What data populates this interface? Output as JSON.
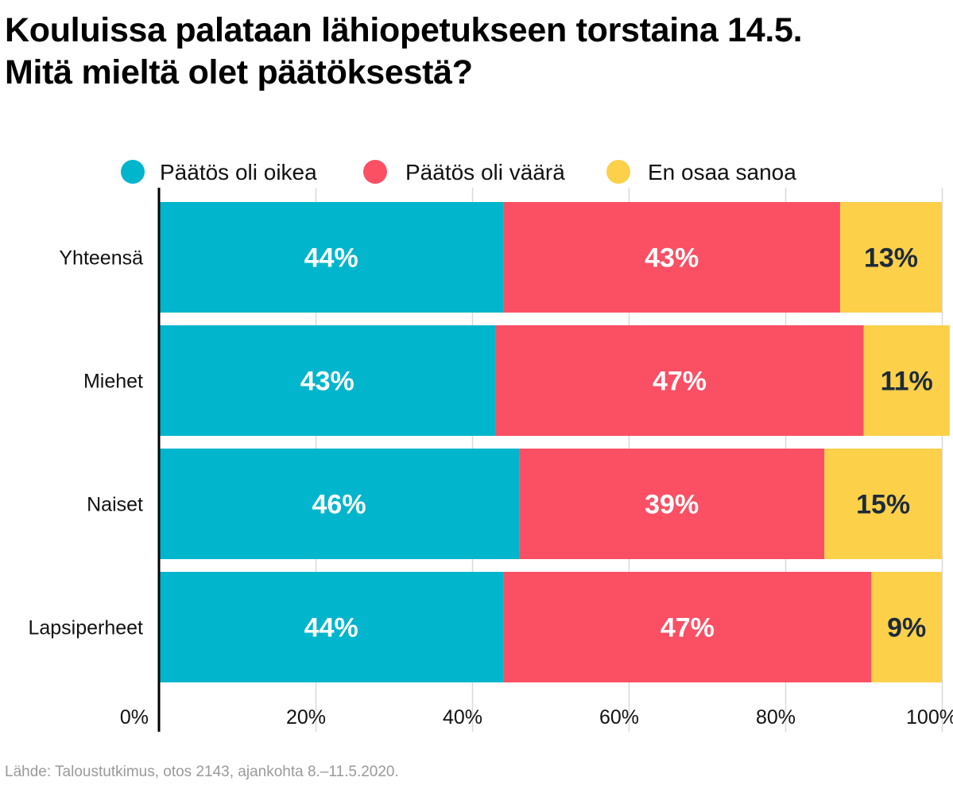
{
  "title": {
    "line1": "Kouluissa palataan lähiopetukseen torstaina 14.5.",
    "line2": "Mitä mieltä olet päätöksestä?"
  },
  "source": "Lähde: Taloustutkimus, otos 2143, ajankohta 8.–11.5.2020.",
  "colors": {
    "oikea": "#00b5cc",
    "vaara": "#fb4f64",
    "eos": "#fdd04a",
    "label_light": "#ffffff",
    "label_dark": "#1d2b3a",
    "grid": "#d9d9d9",
    "axis": "#000000"
  },
  "chart_data": {
    "type": "bar",
    "orientation": "horizontal",
    "stacked": true,
    "title": "Kouluissa palataan lähiopetukseen torstaina 14.5. Mitä mieltä olet päätöksestä?",
    "categories": [
      "Yhteensä",
      "Miehet",
      "Naiset",
      "Lapsiperheet"
    ],
    "series": [
      {
        "name": "Päätös oli oikea",
        "key": "oikea",
        "values": [
          44,
          43,
          46,
          44
        ],
        "labels": [
          "44%",
          "43%",
          "46%",
          "44%"
        ]
      },
      {
        "name": "Päätös oli väärä",
        "key": "vaara",
        "values": [
          43,
          47,
          39,
          47
        ],
        "labels": [
          "43%",
          "47%",
          "39%",
          "47%"
        ]
      },
      {
        "name": "En osaa sanoa",
        "key": "eos",
        "values": [
          13,
          11,
          15,
          9
        ],
        "labels": [
          "13%",
          "11%",
          "15%",
          "9%"
        ]
      }
    ],
    "xlim": [
      0,
      100
    ],
    "xticks": [
      0,
      20,
      40,
      60,
      80,
      100
    ],
    "xtick_labels": [
      "0%",
      "20%",
      "40%",
      "60%",
      "80%",
      "100%"
    ],
    "grid": true,
    "legend_position": "top"
  }
}
